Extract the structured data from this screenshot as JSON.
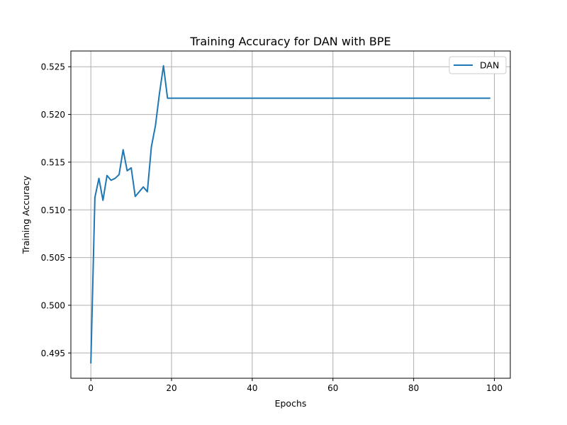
{
  "chart_data": {
    "type": "line",
    "title": "Training Accuracy for DAN with BPE",
    "xlabel": "Epochs",
    "ylabel": "Training Accuracy",
    "xlim": [
      -4.95,
      103.95
    ],
    "ylim": [
      0.49235,
      0.52665
    ],
    "xticks": [
      0,
      20,
      40,
      60,
      80,
      100
    ],
    "yticks": [
      0.495,
      0.5,
      0.505,
      0.51,
      0.515,
      0.52,
      0.525
    ],
    "ytick_labels": [
      "0.495",
      "0.500",
      "0.505",
      "0.510",
      "0.515",
      "0.520",
      "0.525"
    ],
    "grid": true,
    "legend_position": "top-right",
    "series": [
      {
        "name": "DAN",
        "color": "#1f77b4",
        "points": [
          [
            0,
            0.4939
          ],
          [
            1,
            0.5113
          ],
          [
            2,
            0.5133
          ],
          [
            3,
            0.511
          ],
          [
            4,
            0.5136
          ],
          [
            5,
            0.5131
          ],
          [
            6,
            0.5133
          ],
          [
            7,
            0.5137
          ],
          [
            8,
            0.5163
          ],
          [
            9,
            0.5141
          ],
          [
            10,
            0.5144
          ],
          [
            11,
            0.5114
          ],
          [
            12,
            0.5119
          ],
          [
            13,
            0.5124
          ],
          [
            14,
            0.5119
          ],
          [
            15,
            0.5166
          ],
          [
            16,
            0.5188
          ],
          [
            17,
            0.5222
          ],
          [
            18,
            0.5251
          ],
          [
            19,
            0.5217
          ],
          [
            99,
            0.5217
          ]
        ]
      }
    ]
  }
}
